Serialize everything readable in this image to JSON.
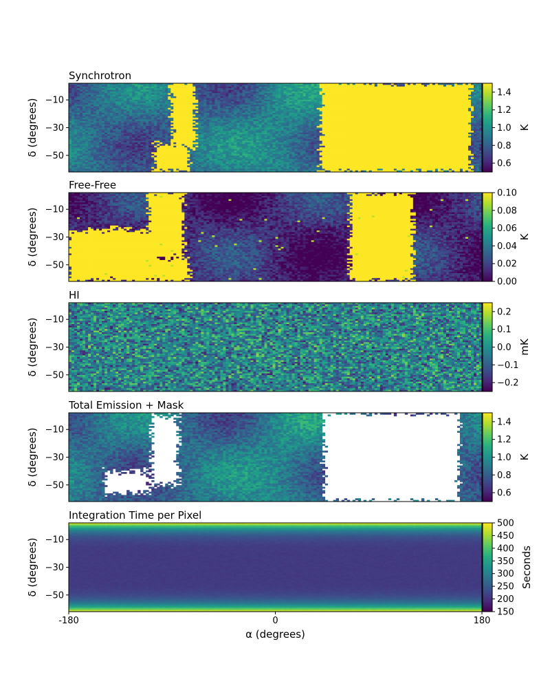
{
  "chart_data": [
    {
      "type": "heatmap",
      "title": "Synchrotron",
      "ylabel": "δ (degrees)",
      "colorbar_label": "K",
      "colormap": "viridis",
      "xlim": [
        -180,
        180
      ],
      "ylim": [
        -62,
        2
      ],
      "yticks": [
        -10,
        -30,
        -50
      ],
      "clim": [
        0.5,
        1.5
      ],
      "cticks": [
        0.6,
        0.8,
        1.0,
        1.2,
        1.4
      ],
      "bright_regions": [
        {
          "a": [
            -105,
            -75
          ],
          "d": [
            -62,
            -42
          ]
        },
        {
          "a": [
            -90,
            -70
          ],
          "d": [
            -45,
            2
          ]
        },
        {
          "a": [
            40,
            170
          ],
          "d": [
            -62,
            2
          ]
        }
      ]
    },
    {
      "type": "heatmap",
      "title": "Free-Free",
      "ylabel": "δ (degrees)",
      "colorbar_label": "K",
      "colormap": "viridis",
      "xlim": [
        -180,
        180
      ],
      "ylim": [
        -62,
        2
      ],
      "yticks": [
        -10,
        -30,
        -50
      ],
      "clim": [
        0.0,
        0.1
      ],
      "cticks": [
        0.0,
        0.02,
        0.04,
        0.06,
        0.08,
        0.1
      ],
      "bright_regions": [
        {
          "a": [
            -180,
            -100
          ],
          "d": [
            -62,
            -25
          ]
        },
        {
          "a": [
            -105,
            -75
          ],
          "d": [
            -62,
            -45
          ]
        },
        {
          "a": [
            -110,
            -80
          ],
          "d": [
            -45,
            2
          ]
        },
        {
          "a": [
            65,
            120
          ],
          "d": [
            -62,
            2
          ]
        }
      ]
    },
    {
      "type": "heatmap",
      "title": "HI",
      "ylabel": "δ (degrees)",
      "colorbar_label": "mK",
      "colormap": "viridis",
      "xlim": [
        -180,
        180
      ],
      "ylim": [
        -62,
        2
      ],
      "yticks": [
        -10,
        -30,
        -50
      ],
      "clim": [
        -0.25,
        0.25
      ],
      "cticks": [
        -0.2,
        -0.1,
        0.0,
        0.1,
        0.2
      ]
    },
    {
      "type": "heatmap",
      "title": "Total Emission + Mask",
      "ylabel": "δ (degrees)",
      "colorbar_label": "K",
      "colormap": "viridis",
      "xlim": [
        -180,
        180
      ],
      "ylim": [
        -62,
        2
      ],
      "yticks": [
        -10,
        -30,
        -50
      ],
      "clim": [
        0.5,
        1.5
      ],
      "cticks": [
        0.6,
        0.8,
        1.0,
        1.2,
        1.4
      ],
      "masked_regions": [
        {
          "a": [
            -148,
            -110
          ],
          "d": [
            -56,
            -40
          ]
        },
        {
          "a": [
            -108,
            -85
          ],
          "d": [
            -50,
            0
          ]
        },
        {
          "a": [
            42,
            160
          ],
          "d": [
            -62,
            2
          ]
        }
      ]
    },
    {
      "type": "heatmap",
      "title": "Integration Time per Pixel",
      "ylabel": "δ (degrees)",
      "xlabel": "α (degrees)",
      "colorbar_label": "Seconds",
      "colormap": "viridis",
      "xlim": [
        -180,
        180
      ],
      "ylim": [
        -62,
        2
      ],
      "yticks": [
        -10,
        -30,
        -50
      ],
      "xticks": [
        "-180",
        "0",
        "180"
      ],
      "clim": [
        150,
        500
      ],
      "cticks": [
        150,
        200,
        250,
        300,
        350,
        400,
        450,
        500
      ],
      "profile": {
        "edge_value": 500,
        "center_value": 210,
        "center_dec": -30
      }
    }
  ]
}
